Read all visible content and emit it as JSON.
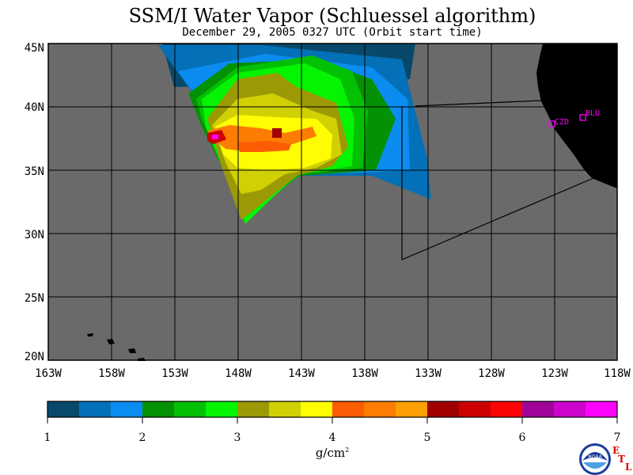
{
  "title": "SSM/I Water Vapor (Schluessel algorithm)",
  "subtitle": "December 29, 2005  0327 UTC  (Orbit start time)",
  "lat_labels": [
    "45N",
    "40N",
    "35N",
    "30N",
    "25N",
    "20N"
  ],
  "lon_labels": [
    "163W",
    "158W",
    "153W",
    "148W",
    "143W",
    "138W",
    "133W",
    "128W",
    "123W",
    "118W"
  ],
  "stations": [
    {
      "name": "CZD",
      "lat": 38.6,
      "lon": -123.2
    },
    {
      "name": "BLU",
      "lat": 39.3,
      "lon": -120.7
    }
  ],
  "colorbar": {
    "ticks": [
      "1",
      "2",
      "3",
      "4",
      "5",
      "6",
      "7"
    ],
    "units_base": "g/cm",
    "units_exp": "2",
    "colors": [
      "#08496b",
      "#0470b8",
      "#0a8cf0",
      "#049104",
      "#04c004",
      "#04f404",
      "#9c9a04",
      "#d0d004",
      "#fffc04",
      "#fc5c04",
      "#fc7c04",
      "#fca004",
      "#a00000",
      "#cc0000",
      "#fc0404",
      "#a00498",
      "#cc04cc",
      "#fc04fc"
    ]
  },
  "colors": {
    "ocean": "#6a6a6a",
    "land": "#000000",
    "station": "#ff00ff",
    "no_data": "#6a6a6a"
  },
  "logo": {
    "text": "NOAA",
    "etl_letters": [
      "E",
      "T",
      "L"
    ]
  }
}
